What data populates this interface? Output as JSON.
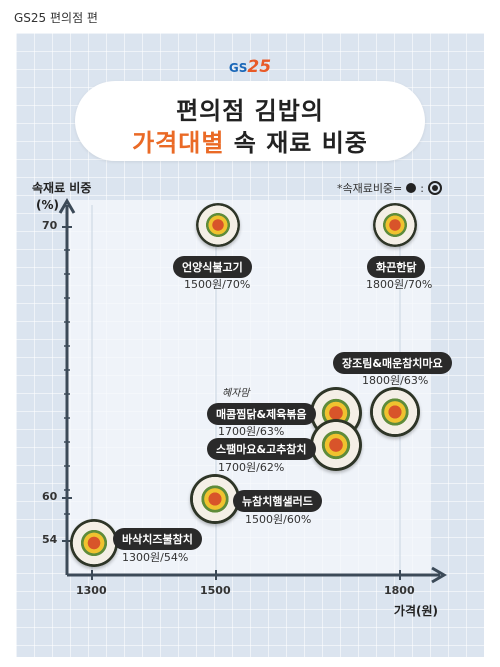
{
  "page_title": "GS25 편의점 편",
  "brand": {
    "prefix": "GS",
    "suffix": "25"
  },
  "title": {
    "line1": "편의점 김밥의",
    "line2_highlight": "가격대별",
    "line2_rest": " 속 재료 비중"
  },
  "legend": {
    "text": "*속재료비중="
  },
  "colors": {
    "panel": "#dbe4ef",
    "axis": "#3c4a58",
    "highlight": "#ea6a26",
    "pill": "#2a2a2a"
  },
  "chart_data": {
    "type": "scatter",
    "title": "편의점 김밥의 가격대별 속 재료 비중",
    "xlabel": "가격(원)",
    "ylabel_line1": "속재료 비중",
    "ylabel_line2": "(%)",
    "x_ticks": [
      1300,
      1500,
      1800
    ],
    "y_ticks": [
      54,
      60,
      70
    ],
    "xlim": [
      1260,
      1880
    ],
    "points": [
      {
        "name": "언양식불고기",
        "x": 1500,
        "y": 70,
        "detail": "1500원/70%"
      },
      {
        "name": "화끈한닭",
        "x": 1800,
        "y": 70,
        "detail": "1800원/70%"
      },
      {
        "name": "장조림&매운참치마요",
        "x": 1800,
        "y": 63,
        "detail": "1800원/63%"
      },
      {
        "name": "매콤찜닭&제육볶음",
        "x": 1700,
        "y": 63,
        "detail": "1700원/63%",
        "note": "혜자맘"
      },
      {
        "name": "스팸마요&고추참치",
        "x": 1700,
        "y": 62,
        "detail": "1700원/62%"
      },
      {
        "name": "뉴참치햄샐러드",
        "x": 1500,
        "y": 60,
        "detail": "1500원/60%"
      },
      {
        "name": "바삭치즈불참치",
        "x": 1300,
        "y": 54,
        "detail": "1300원/54%"
      }
    ]
  }
}
